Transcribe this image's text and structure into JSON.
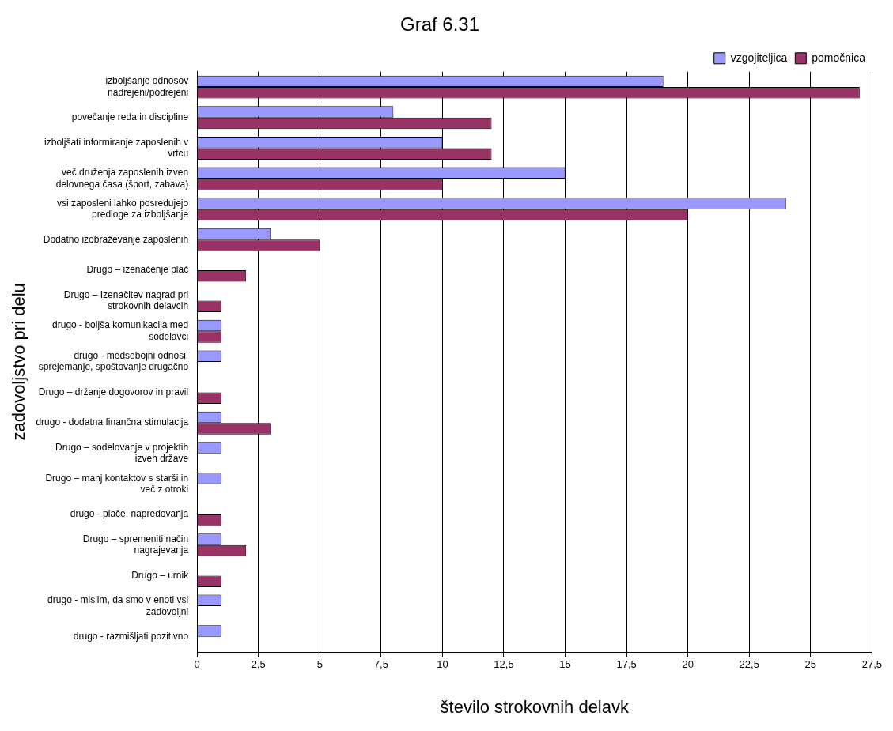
{
  "chart_data": {
    "type": "bar",
    "orientation": "horizontal",
    "title": "Graf 6.31",
    "xlabel": "število strokovnih delavk",
    "ylabel": "zadovoljstvo pri delu",
    "categories": [
      "izboljšanje odnosov nadrejeni/podrejeni",
      "povečanje reda in discipline",
      "izboljšati informiranje zaposlenih v vrtcu",
      "več druženja zaposlenih izven delovnega časa (šport, zabava)",
      "vsi zaposleni lahko posredujejo predloge za izboljšanje",
      "Dodatno izobraževanje zaposlenih",
      "Drugo – izenačenje plač",
      "Drugo – Izenačitev nagrad pri strokovnih delavcih",
      "drugo - boljša komunikacija med sodelavci",
      "drugo - medsebojni odnosi, sprejemanje, spoštovanje drugačno",
      "Drugo – držanje dogovorov in pravil",
      "drugo - dodatna finančna stimulacija",
      "Drugo – sodelovanje v projektih izveh države",
      "Drugo – manj kontaktov s starši in več z otroki",
      "drugo - plače, napredovanja",
      "Drugo – spremeniti način nagrajevanja",
      "Drugo – urnik",
      "drugo - mislim, da smo v enoti vsi zadovoljni",
      "drugo - razmišljati pozitivno"
    ],
    "series": [
      {
        "name": "vzgojiteljica",
        "color": "#9999ff",
        "values": [
          19,
          8,
          10,
          15,
          24,
          3,
          null,
          null,
          1,
          1,
          null,
          1,
          1,
          1,
          null,
          1,
          null,
          1,
          1
        ]
      },
      {
        "name": "pomočnica",
        "color": "#993366",
        "values": [
          27,
          12,
          12,
          10,
          20,
          5,
          2,
          1,
          1,
          null,
          1,
          3,
          null,
          null,
          1,
          2,
          1,
          null,
          null
        ]
      }
    ],
    "xlim": [
      0,
      27.5
    ],
    "xticks": [
      0,
      {
        "value": 2.5,
        "label": "2,5"
      },
      5,
      {
        "value": 7.5,
        "label": "7,5"
      },
      10,
      {
        "value": 12.5,
        "label": "12,5"
      },
      15,
      {
        "value": 17.5,
        "label": "17,5"
      },
      20,
      {
        "value": 22.5,
        "label": "22,5"
      },
      25,
      {
        "value": 27.5,
        "label": "27,5"
      }
    ],
    "grid": "x",
    "legend": "top right"
  }
}
